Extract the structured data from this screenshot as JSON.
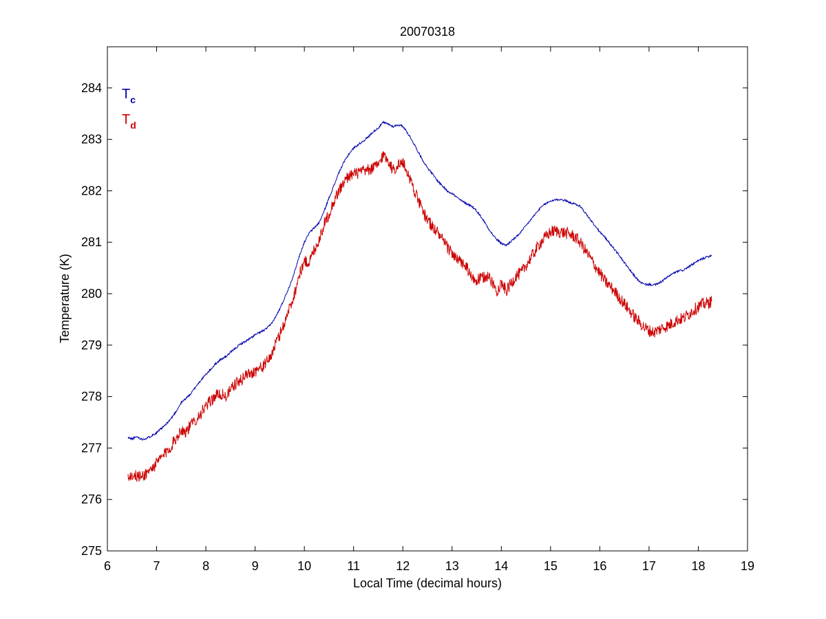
{
  "chart_data": {
    "type": "line",
    "title": "20070318",
    "xlabel": "Local Time (decimal hours)",
    "ylabel": "Temperature (K)",
    "xlim": [
      6,
      19
    ],
    "ylim": [
      275,
      284.8
    ],
    "xticks": [
      6,
      7,
      8,
      9,
      10,
      11,
      12,
      13,
      14,
      15,
      16,
      17,
      18,
      19
    ],
    "yticks": [
      275,
      276,
      277,
      278,
      279,
      280,
      281,
      282,
      283,
      284
    ],
    "grid": false,
    "legend_placement": "top-left",
    "legend": [
      {
        "base": "T",
        "sub": "c",
        "color": "#0000aa"
      },
      {
        "base": "T",
        "sub": "d",
        "color": "#cc0000"
      }
    ],
    "series": [
      {
        "color": "#0000aa",
        "noise": 0.02,
        "x": [
          6.42,
          6.5,
          6.6,
          6.7,
          6.8,
          6.9,
          7.0,
          7.1,
          7.2,
          7.3,
          7.4,
          7.5,
          7.6,
          7.7,
          7.8,
          7.9,
          8.0,
          8.1,
          8.2,
          8.3,
          8.4,
          8.5,
          8.6,
          8.7,
          8.8,
          8.9,
          9.0,
          9.1,
          9.2,
          9.3,
          9.4,
          9.5,
          9.6,
          9.7,
          9.8,
          9.9,
          10.0,
          10.1,
          10.2,
          10.3,
          10.4,
          10.5,
          10.6,
          10.7,
          10.8,
          10.9,
          11.0,
          11.1,
          11.2,
          11.3,
          11.4,
          11.5,
          11.6,
          11.7,
          11.8,
          11.9,
          12.0,
          12.1,
          12.2,
          12.3,
          12.4,
          12.5,
          12.6,
          12.7,
          12.8,
          12.9,
          13.0,
          13.1,
          13.2,
          13.3,
          13.4,
          13.5,
          13.6,
          13.7,
          13.8,
          13.9,
          14.0,
          14.1,
          14.2,
          14.3,
          14.4,
          14.5,
          14.6,
          14.7,
          14.8,
          14.9,
          15.0,
          15.1,
          15.2,
          15.3,
          15.4,
          15.5,
          15.6,
          15.7,
          15.8,
          15.9,
          16.0,
          16.1,
          16.2,
          16.3,
          16.4,
          16.5,
          16.6,
          16.7,
          16.8,
          16.9,
          17.0,
          17.1,
          17.2,
          17.3,
          17.4,
          17.5,
          17.6,
          17.7,
          17.8,
          17.9,
          18.0,
          18.1,
          18.2,
          18.27
        ],
        "y": [
          277.2,
          277.18,
          277.22,
          277.17,
          277.19,
          277.24,
          277.3,
          277.38,
          277.47,
          277.58,
          277.72,
          277.88,
          277.97,
          278.06,
          278.2,
          278.32,
          278.43,
          278.53,
          278.64,
          278.72,
          278.77,
          278.86,
          278.94,
          279.02,
          279.07,
          279.13,
          279.2,
          279.25,
          279.3,
          279.38,
          279.52,
          279.7,
          279.92,
          280.15,
          280.42,
          280.74,
          281.0,
          281.18,
          281.28,
          281.38,
          281.6,
          281.86,
          282.1,
          282.35,
          282.55,
          282.71,
          282.83,
          282.9,
          282.97,
          283.05,
          283.15,
          283.22,
          283.33,
          283.3,
          283.25,
          283.28,
          283.26,
          283.12,
          282.96,
          282.78,
          282.6,
          282.45,
          282.33,
          282.2,
          282.1,
          282.0,
          281.95,
          281.87,
          281.8,
          281.75,
          281.7,
          281.61,
          281.48,
          281.33,
          281.18,
          281.06,
          280.98,
          280.94,
          281.02,
          281.1,
          281.2,
          281.32,
          281.44,
          281.56,
          281.67,
          281.75,
          281.8,
          281.83,
          281.83,
          281.81,
          281.77,
          281.74,
          281.7,
          281.58,
          281.45,
          281.32,
          281.2,
          281.1,
          280.98,
          280.86,
          280.74,
          280.6,
          280.47,
          280.35,
          280.24,
          280.18,
          280.18,
          280.17,
          280.2,
          280.27,
          280.34,
          280.4,
          280.44,
          280.46,
          280.52,
          280.58,
          280.64,
          280.69,
          280.72,
          280.75
        ]
      },
      {
        "color": "#cc0000",
        "noise": 0.12,
        "x": [
          6.42,
          6.5,
          6.6,
          6.7,
          6.8,
          6.9,
          7.0,
          7.1,
          7.2,
          7.3,
          7.4,
          7.5,
          7.6,
          7.7,
          7.8,
          7.9,
          8.0,
          8.1,
          8.2,
          8.3,
          8.4,
          8.5,
          8.6,
          8.7,
          8.8,
          8.9,
          9.0,
          9.1,
          9.2,
          9.3,
          9.4,
          9.5,
          9.6,
          9.7,
          9.8,
          9.9,
          10.0,
          10.1,
          10.2,
          10.3,
          10.4,
          10.5,
          10.6,
          10.7,
          10.8,
          10.9,
          11.0,
          11.1,
          11.2,
          11.3,
          11.4,
          11.5,
          11.6,
          11.7,
          11.8,
          11.9,
          12.0,
          12.1,
          12.2,
          12.3,
          12.4,
          12.5,
          12.6,
          12.7,
          12.8,
          12.9,
          13.0,
          13.1,
          13.2,
          13.3,
          13.4,
          13.5,
          13.6,
          13.7,
          13.8,
          13.9,
          14.0,
          14.1,
          14.2,
          14.3,
          14.4,
          14.5,
          14.6,
          14.7,
          14.8,
          14.9,
          15.0,
          15.1,
          15.2,
          15.3,
          15.4,
          15.5,
          15.6,
          15.7,
          15.8,
          15.9,
          16.0,
          16.1,
          16.2,
          16.3,
          16.4,
          16.5,
          16.6,
          16.7,
          16.8,
          16.9,
          17.0,
          17.1,
          17.2,
          17.3,
          17.4,
          17.5,
          17.6,
          17.7,
          17.8,
          17.9,
          18.0,
          18.1,
          18.2,
          18.27
        ],
        "y": [
          276.45,
          276.47,
          276.45,
          276.44,
          276.52,
          276.6,
          276.7,
          276.82,
          276.92,
          277.05,
          277.2,
          277.36,
          277.32,
          277.45,
          277.56,
          277.68,
          277.8,
          277.92,
          278.02,
          278.05,
          278.0,
          278.12,
          278.25,
          278.3,
          278.42,
          278.45,
          278.5,
          278.55,
          278.62,
          278.75,
          278.98,
          279.2,
          279.45,
          279.72,
          280.0,
          280.38,
          280.62,
          280.62,
          280.85,
          281.05,
          281.35,
          281.55,
          281.8,
          282.0,
          282.15,
          282.3,
          282.32,
          282.35,
          282.38,
          282.4,
          282.45,
          282.5,
          282.7,
          282.6,
          282.4,
          282.5,
          282.55,
          282.35,
          282.1,
          281.85,
          281.6,
          281.45,
          281.3,
          281.2,
          281.05,
          280.9,
          280.8,
          280.65,
          280.6,
          280.5,
          280.3,
          280.25,
          280.3,
          280.35,
          280.25,
          280.05,
          280.2,
          280.05,
          280.2,
          280.35,
          280.4,
          280.55,
          280.7,
          280.85,
          281.0,
          281.1,
          281.2,
          281.22,
          281.2,
          281.18,
          281.15,
          281.1,
          281.0,
          280.85,
          280.7,
          280.55,
          280.4,
          280.25,
          280.15,
          280.05,
          279.92,
          279.8,
          279.68,
          279.55,
          279.45,
          279.35,
          279.28,
          279.25,
          279.3,
          279.35,
          279.38,
          279.45,
          279.5,
          279.52,
          279.6,
          279.68,
          279.75,
          279.8,
          279.82,
          279.85
        ]
      }
    ]
  }
}
